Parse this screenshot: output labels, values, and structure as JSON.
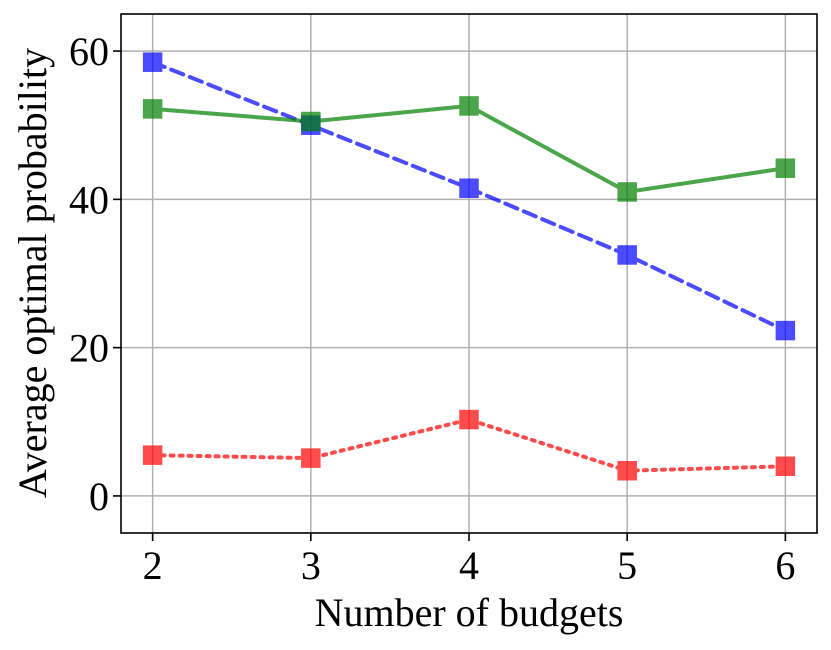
{
  "chart_data": {
    "type": "line",
    "xlabel": "Number of budgets",
    "ylabel": "Average optimal probability",
    "x": [
      2,
      3,
      4,
      5,
      6
    ],
    "xlim": [
      1.8,
      6.2
    ],
    "ylim": [
      -5,
      65
    ],
    "xticks": [
      "2",
      "3",
      "4",
      "5",
      "6"
    ],
    "yticks": [
      0,
      20,
      40,
      60
    ],
    "ytick_labels": [
      "0",
      "20",
      "40",
      "60"
    ],
    "grid": true,
    "legend": "none",
    "marker": "square",
    "series": [
      {
        "values": [
          58.5,
          50.0,
          41.5,
          32.5,
          22.3
        ],
        "color": "#0000ff",
        "line_style": "dashed"
      },
      {
        "values": [
          52.2,
          50.5,
          52.6,
          41.0,
          44.2
        ],
        "color": "#008000",
        "line_style": "solid"
      },
      {
        "values": [
          5.5,
          5.1,
          10.3,
          3.4,
          4.0
        ],
        "color": "#ff0000",
        "line_style": "dotted"
      }
    ]
  }
}
